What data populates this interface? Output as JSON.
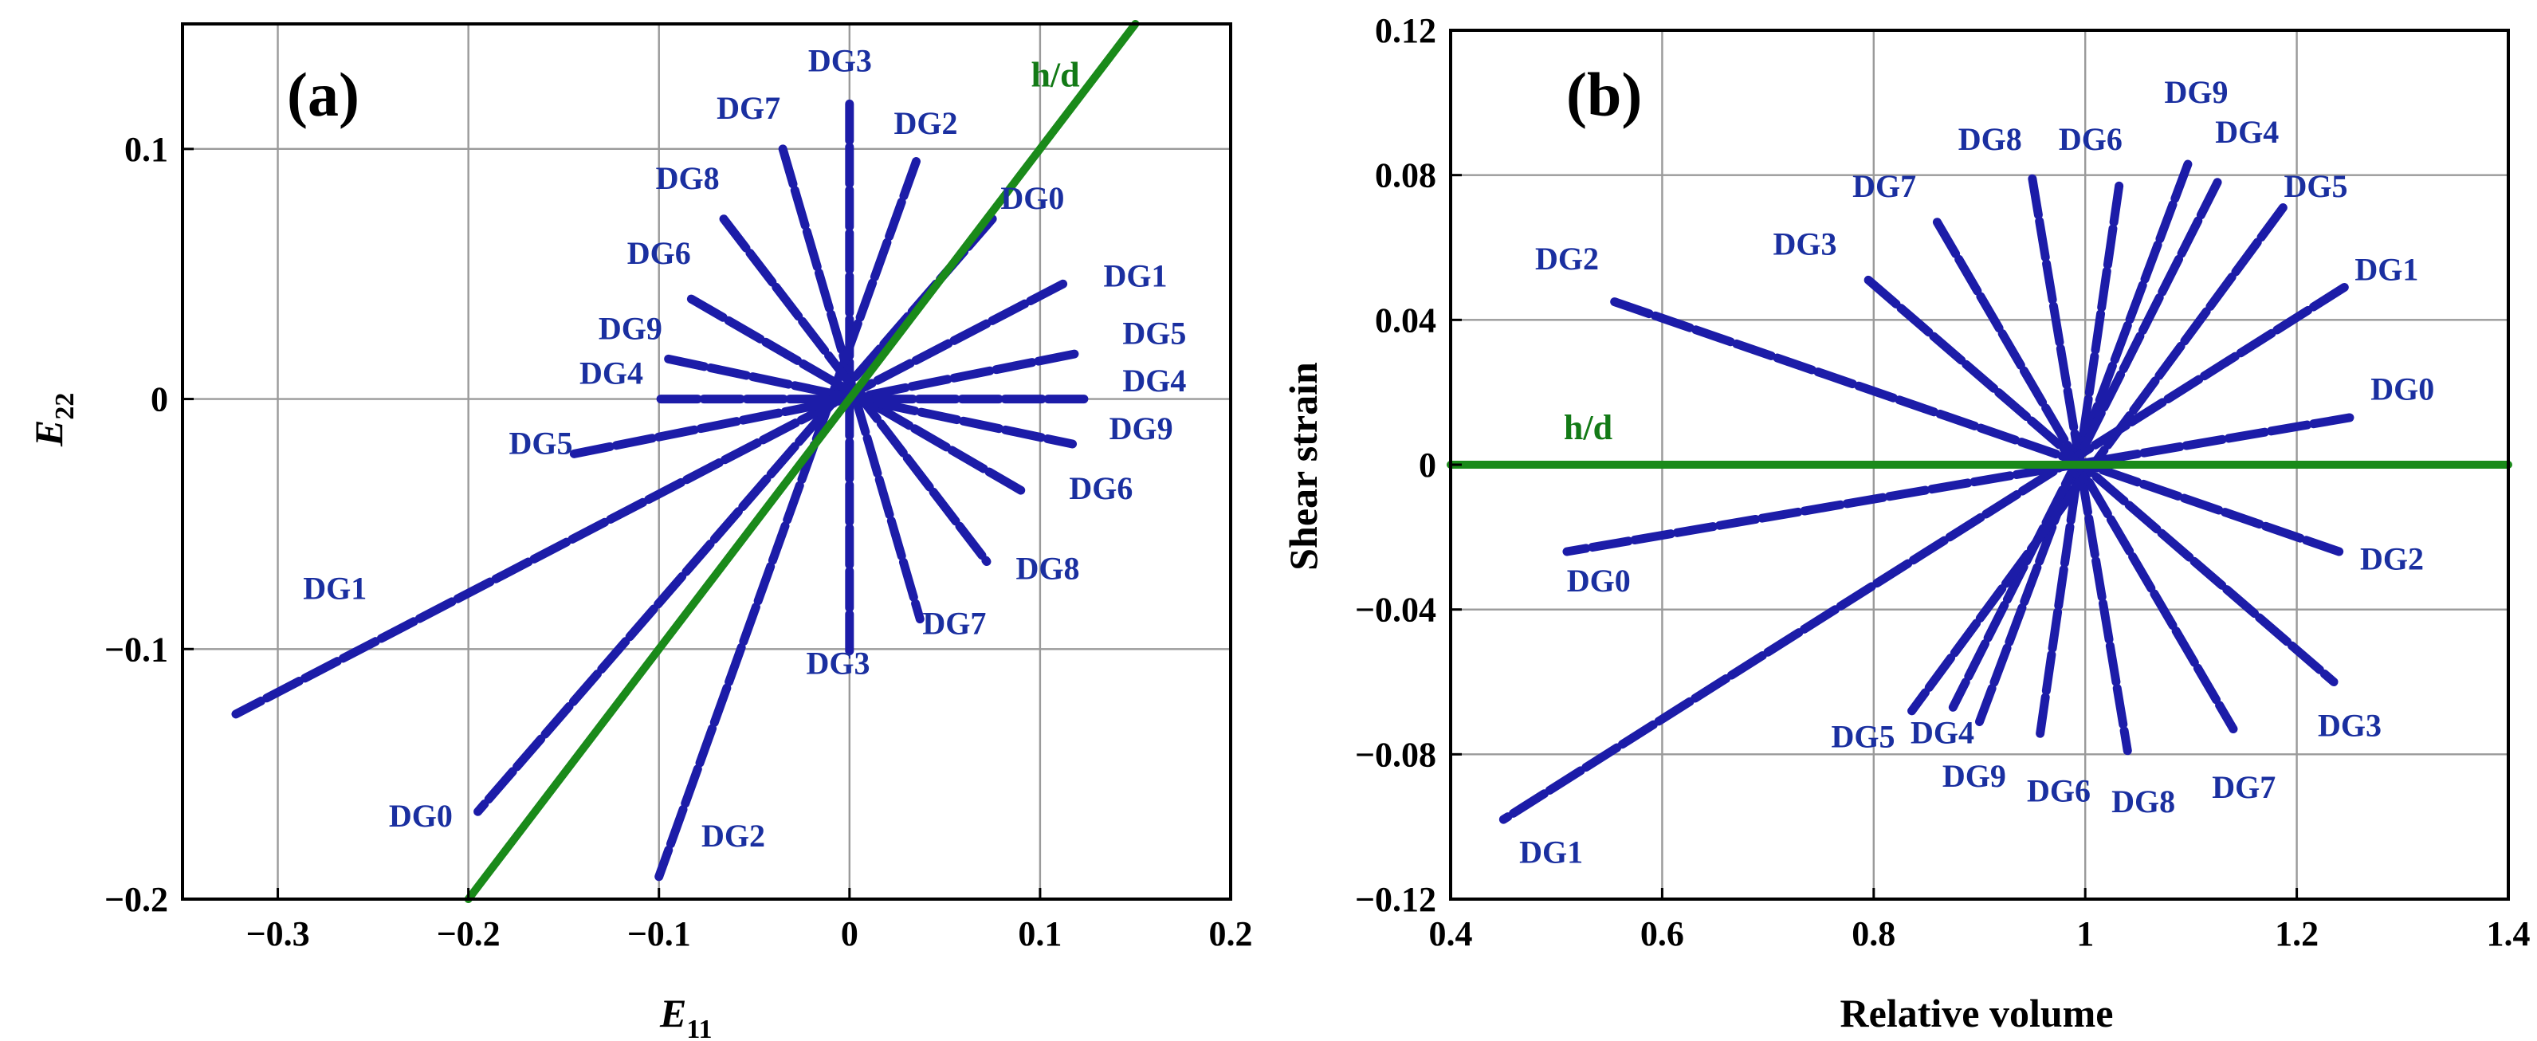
{
  "chart_data": [
    {
      "type": "line",
      "panel_label": "(a)",
      "xlabel_main": "E",
      "xlabel_sub": "11",
      "ylabel_main": "E",
      "ylabel_sub": "22",
      "xlim": [
        -0.35,
        0.2
      ],
      "ylim": [
        -0.2,
        0.15
      ],
      "xticks": [
        -0.3,
        -0.2,
        -0.1,
        0,
        0.1,
        0.2
      ],
      "xtick_labels": [
        "−0.3",
        "−0.2",
        "−0.1",
        "0",
        "0.1",
        "0.2"
      ],
      "yticks": [
        -0.2,
        -0.1,
        0,
        0.1
      ],
      "ytick_labels": [
        "−0.2",
        "−0.1",
        "0",
        "0.1"
      ],
      "grid": true,
      "colors": {
        "series": "#1c1ca8",
        "reference": "#1a8a1a",
        "label": "#1a2fa0"
      },
      "reference": {
        "label": "h/d",
        "x": [
          -0.2,
          0.15
        ],
        "y": [
          -0.2,
          0.15
        ],
        "label_at": [
          0.108,
          0.125
        ]
      },
      "series": [
        {
          "name": "DG3",
          "x": [
            0,
            0
          ],
          "y": [
            0.118,
            0
          ]
        },
        {
          "name": "DG3",
          "x": [
            0,
            0
          ],
          "y": [
            0,
            -0.102
          ]
        },
        {
          "name": "DG7",
          "x": [
            -0.035,
            0.037
          ],
          "y": [
            0.1,
            -0.088
          ]
        },
        {
          "name": "DG2",
          "x": [
            0.035,
            -0.1
          ],
          "y": [
            0.095,
            -0.191
          ]
        },
        {
          "name": "DG0",
          "x": [
            0.075,
            -0.195
          ],
          "y": [
            0.072,
            -0.165
          ]
        },
        {
          "name": "DG8",
          "x": [
            -0.066,
            0.072
          ],
          "y": [
            0.072,
            -0.065
          ]
        },
        {
          "name": "DG1",
          "x": [
            0.112,
            -0.322
          ],
          "y": [
            0.046,
            -0.126
          ]
        },
        {
          "name": "DG6",
          "x": [
            -0.083,
            0.091
          ],
          "y": [
            0.04,
            -0.037
          ]
        },
        {
          "name": "DG5",
          "x": [
            0.118,
            -0.145
          ],
          "y": [
            0.018,
            -0.022
          ]
        },
        {
          "name": "DG9",
          "x": [
            -0.095,
            0.117
          ],
          "y": [
            0.016,
            -0.018
          ]
        },
        {
          "name": "DG4",
          "x": [
            -0.099,
            0.123
          ],
          "y": [
            0,
            0
          ]
        }
      ],
      "labels": [
        {
          "text": "DG3",
          "at": [
            -0.005,
            0.131
          ]
        },
        {
          "text": "DG7",
          "at": [
            -0.053,
            0.112
          ]
        },
        {
          "text": "DG2",
          "at": [
            0.04,
            0.106
          ]
        },
        {
          "text": "DG8",
          "at": [
            -0.085,
            0.084
          ]
        },
        {
          "text": "DG0",
          "at": [
            0.096,
            0.076
          ]
        },
        {
          "text": "DG6",
          "at": [
            -0.1,
            0.054
          ]
        },
        {
          "text": "DG1",
          "at": [
            0.15,
            0.045
          ]
        },
        {
          "text": "DG9",
          "at": [
            -0.115,
            0.024
          ]
        },
        {
          "text": "DG5",
          "at": [
            0.16,
            0.022
          ]
        },
        {
          "text": "DG4",
          "at": [
            -0.125,
            0.006
          ]
        },
        {
          "text": "DG4",
          "at": [
            0.16,
            0.003
          ]
        },
        {
          "text": "DG5",
          "at": [
            -0.162,
            -0.022
          ]
        },
        {
          "text": "DG9",
          "at": [
            0.153,
            -0.016
          ]
        },
        {
          "text": "DG6",
          "at": [
            0.132,
            -0.04
          ]
        },
        {
          "text": "DG8",
          "at": [
            0.104,
            -0.072
          ]
        },
        {
          "text": "DG1",
          "at": [
            -0.27,
            -0.08
          ]
        },
        {
          "text": "DG7",
          "at": [
            0.055,
            -0.094
          ]
        },
        {
          "text": "DG3",
          "at": [
            -0.006,
            -0.11
          ]
        },
        {
          "text": "DG0",
          "at": [
            -0.225,
            -0.171
          ]
        },
        {
          "text": "DG2",
          "at": [
            -0.061,
            -0.179
          ]
        }
      ]
    },
    {
      "type": "line",
      "panel_label": "(b)",
      "xlabel": "Relative volume",
      "ylabel": "Shear strain",
      "xlim": [
        0.4,
        1.4
      ],
      "ylim": [
        -0.12,
        0.12
      ],
      "xticks": [
        0.4,
        0.6,
        0.8,
        1,
        1.2,
        1.4
      ],
      "xtick_labels": [
        "0.4",
        "0.6",
        "0.8",
        "1",
        "1.2",
        "1.4"
      ],
      "yticks": [
        -0.12,
        -0.08,
        -0.04,
        0,
        0.04,
        0.08,
        0.12
      ],
      "ytick_labels": [
        "−0.12",
        "−0.08",
        "−0.04",
        "0",
        "0.04",
        "0.08",
        "0.12"
      ],
      "grid": true,
      "colors": {
        "series": "#1c1ca8",
        "reference": "#1a8a1a",
        "label": "#1a2fa0"
      },
      "reference": {
        "label": "h/d",
        "x": [
          0.4,
          1.4
        ],
        "y": [
          0,
          0
        ],
        "label_at": [
          0.53,
          0.007
        ]
      },
      "series": [
        {
          "name": "DG8",
          "x": [
            0.95,
            1.04
          ],
          "y": [
            0.079,
            -0.079
          ]
        },
        {
          "name": "DG6",
          "x": [
            1.032,
            0.957
          ],
          "y": [
            0.077,
            -0.075
          ]
        },
        {
          "name": "DG9",
          "x": [
            1.097,
            0.9
          ],
          "y": [
            0.083,
            -0.071
          ]
        },
        {
          "name": "DG4",
          "x": [
            1.125,
            0.875
          ],
          "y": [
            0.078,
            -0.067
          ]
        },
        {
          "name": "DG7",
          "x": [
            0.86,
            1.14
          ],
          "y": [
            0.067,
            -0.073
          ]
        },
        {
          "name": "DG5",
          "x": [
            1.187,
            0.836
          ],
          "y": [
            0.071,
            -0.068
          ]
        },
        {
          "name": "DG3",
          "x": [
            0.795,
            1.235
          ],
          "y": [
            0.051,
            -0.06
          ]
        },
        {
          "name": "DG1",
          "x": [
            1.245,
            0.45
          ],
          "y": [
            0.049,
            -0.098
          ]
        },
        {
          "name": "DG2",
          "x": [
            0.555,
            1.24
          ],
          "y": [
            0.045,
            -0.024
          ]
        },
        {
          "name": "DG0",
          "x": [
            1.25,
            0.51
          ],
          "y": [
            0.013,
            -0.024
          ]
        }
      ],
      "labels": [
        {
          "text": "DG8",
          "at": [
            0.91,
            0.087
          ]
        },
        {
          "text": "DG6",
          "at": [
            1.005,
            0.087
          ]
        },
        {
          "text": "DG9",
          "at": [
            1.105,
            0.1
          ]
        },
        {
          "text": "DG4",
          "at": [
            1.153,
            0.089
          ]
        },
        {
          "text": "DG7",
          "at": [
            0.81,
            0.074
          ]
        },
        {
          "text": "DG5",
          "at": [
            1.218,
            0.074
          ]
        },
        {
          "text": "DG3",
          "at": [
            0.735,
            0.058
          ]
        },
        {
          "text": "DG1",
          "at": [
            1.285,
            0.051
          ]
        },
        {
          "text": "DG2",
          "at": [
            0.51,
            0.054
          ]
        },
        {
          "text": "DG0",
          "at": [
            1.3,
            0.018
          ]
        },
        {
          "text": "DG2",
          "at": [
            1.29,
            -0.029
          ]
        },
        {
          "text": "DG0",
          "at": [
            0.54,
            -0.035
          ]
        },
        {
          "text": "DG3",
          "at": [
            1.25,
            -0.075
          ]
        },
        {
          "text": "DG5",
          "at": [
            0.79,
            -0.078
          ]
        },
        {
          "text": "DG4",
          "at": [
            0.865,
            -0.077
          ]
        },
        {
          "text": "DG9",
          "at": [
            0.895,
            -0.089
          ]
        },
        {
          "text": "DG6",
          "at": [
            0.975,
            -0.093
          ]
        },
        {
          "text": "DG8",
          "at": [
            1.055,
            -0.096
          ]
        },
        {
          "text": "DG7",
          "at": [
            1.15,
            -0.092
          ]
        },
        {
          "text": "DG1",
          "at": [
            0.495,
            -0.11
          ]
        }
      ]
    }
  ]
}
